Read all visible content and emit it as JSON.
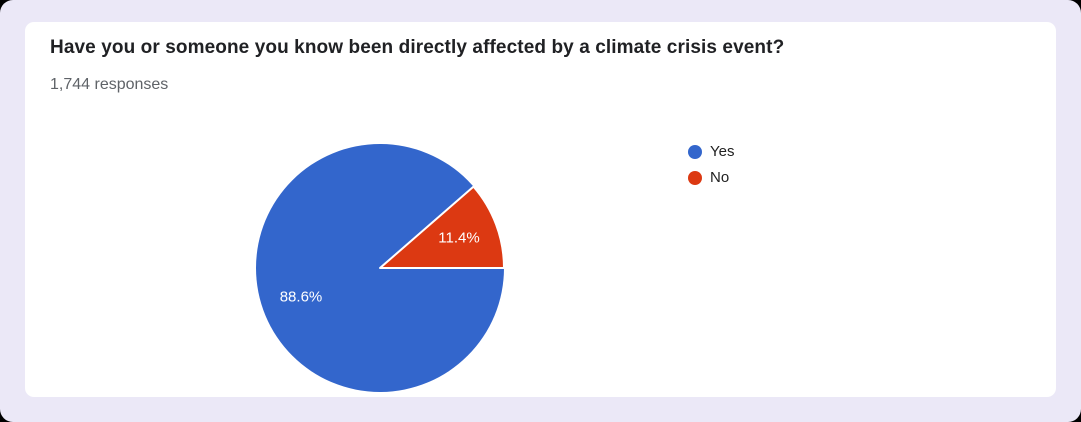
{
  "page": {
    "background_color": "#ebe8f7",
    "card_color": "#ffffff",
    "title_color": "#202124",
    "subtitle_color": "#5f6368"
  },
  "card": {
    "title": "Have you or someone you know been directly affected by a climate crisis event?",
    "responses_count": "1,744 responses"
  },
  "legend": {
    "items": [
      {
        "label": "Yes",
        "color": "#3366cc"
      },
      {
        "label": "No",
        "color": "#dc3912"
      }
    ]
  },
  "chart_data": {
    "type": "pie",
    "title": "Have you or someone you know been directly affected by a climate crisis event?",
    "subtitle": "1,744 responses",
    "categories": [
      "Yes",
      "No"
    ],
    "values": [
      88.6,
      11.4
    ],
    "value_labels": [
      "88.6%",
      "11.4%"
    ],
    "colors": [
      "#3366cc",
      "#dc3912"
    ],
    "slice_border_color": "#ffffff",
    "legend_position": "right",
    "start_angle_deg": 0,
    "direction": "clockwise-from-east",
    "label_radius_ratio": 0.68
  }
}
